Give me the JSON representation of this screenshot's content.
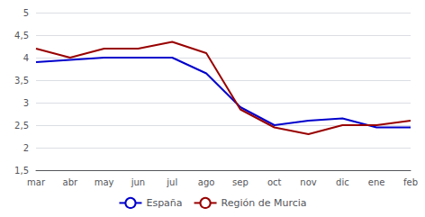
{
  "chart_data": {
    "type": "line",
    "categories": [
      "mar",
      "abr",
      "may",
      "jun",
      "jul",
      "ago",
      "sep",
      "oct",
      "nov",
      "dic",
      "ene",
      "feb"
    ],
    "series": [
      {
        "name": "España",
        "color": "#0000cc",
        "values": [
          3.9,
          3.95,
          4.0,
          4.0,
          4.0,
          3.65,
          2.9,
          2.5,
          2.6,
          2.65,
          2.45,
          2.45
        ]
      },
      {
        "name": "Región de Murcia",
        "color": "#990000",
        "values": [
          4.2,
          4.0,
          4.2,
          4.2,
          4.35,
          4.1,
          2.85,
          2.45,
          2.3,
          2.5,
          2.5,
          2.6
        ]
      }
    ],
    "ylim": [
      1.5,
      5.0
    ],
    "yticks": [
      {
        "value": 1.5,
        "label": "1,5"
      },
      2,
      {
        "value": 2.5,
        "label": "2,5"
      },
      3,
      {
        "value": 3.5,
        "label": "3,5"
      },
      4,
      {
        "value": 4.5,
        "label": "4,5"
      },
      5
    ],
    "grid": true,
    "legend": "bottom"
  }
}
